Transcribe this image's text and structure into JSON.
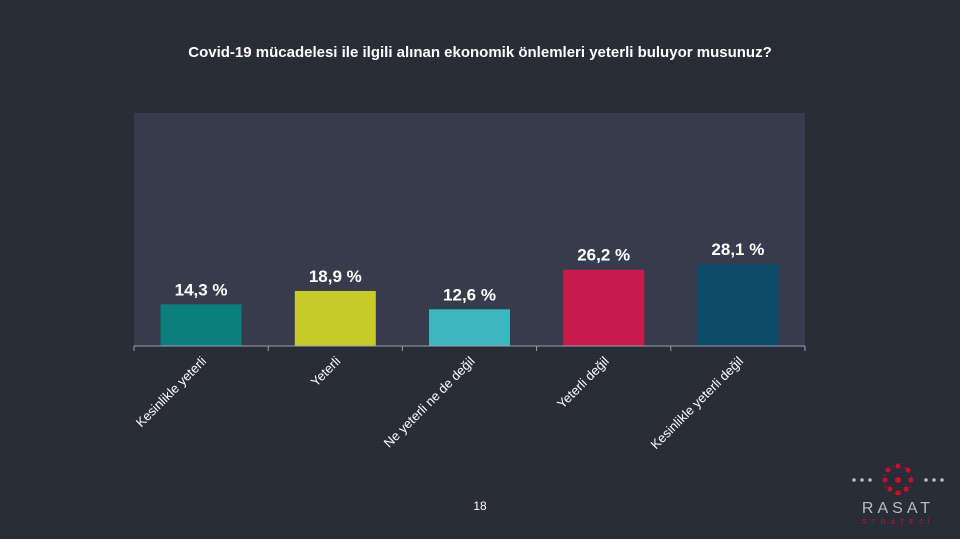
{
  "chart_data": {
    "type": "bar",
    "title": "Covid-19 mücadelesi ile ilgili alınan ekonomik önlemleri yeterli buluyor musunuz?",
    "categories": [
      "Kesinlikle yeterli",
      "Yeterli",
      "Ne yeterli ne de değil",
      "Yeterli değil",
      "Kesinlikle yeterli değil"
    ],
    "values": [
      14.3,
      18.9,
      12.6,
      26.2,
      28.1
    ],
    "value_labels": [
      "14,3 %",
      "18,9 %",
      "12,6 %",
      "26,2 %",
      "28,1 %"
    ],
    "colors": [
      "#0b7f7c",
      "#c5cc28",
      "#3cb7bd",
      "#c81b4a",
      "#0d4b68"
    ],
    "ylim": [
      0,
      80
    ],
    "grid": false,
    "plot_background": "#363c4c"
  },
  "page_number": "18",
  "logo": {
    "name": "RASAT",
    "sub": "STRATEJİ",
    "accent": "#c8102e"
  }
}
